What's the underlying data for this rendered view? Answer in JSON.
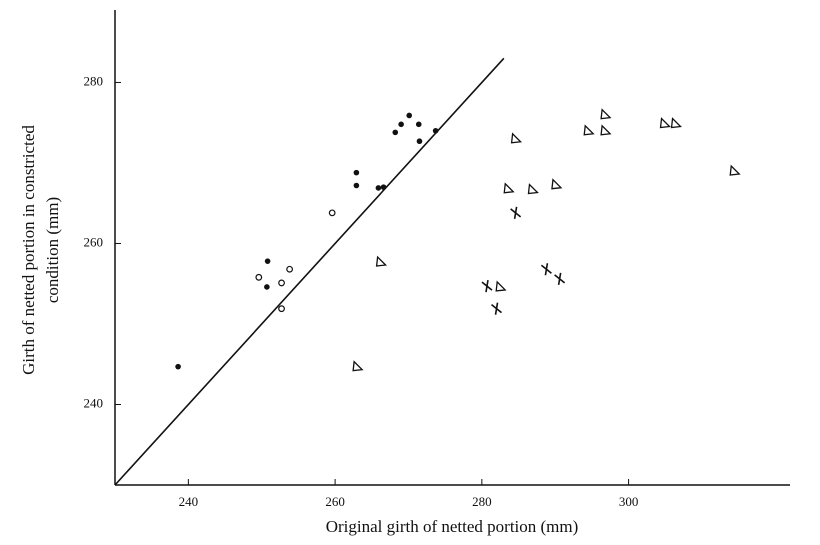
{
  "chart_data": {
    "type": "scatter",
    "xlabel": "Original girth of netted portion (mm)",
    "ylabel": [
      "Girth of netted portion in constricted",
      "condition (mm)"
    ],
    "xlim": [
      230,
      322
    ],
    "ylim": [
      230,
      289
    ],
    "xticks": [
      240,
      260,
      280,
      300
    ],
    "yticks": [
      240,
      260,
      280
    ],
    "reference_line": {
      "x": [
        230,
        283
      ],
      "y": [
        230,
        283
      ]
    },
    "series": [
      {
        "marker": "dot",
        "color": "#111111",
        "x": [
          238.6,
          250.8,
          250.7,
          262.9,
          262.9,
          265.9,
          266.6,
          268.2,
          269.0,
          270.1,
          271.4,
          271.5,
          273.7
        ],
        "values": [
          244.7,
          257.8,
          254.6,
          267.2,
          268.8,
          266.9,
          267.0,
          273.8,
          274.8,
          275.9,
          274.8,
          272.7,
          274.0
        ]
      },
      {
        "marker": "circle",
        "color": "#111111",
        "x": [
          249.6,
          252.7,
          253.8,
          252.7,
          259.6
        ],
        "values": [
          255.8,
          255.1,
          256.8,
          251.9,
          263.8
        ]
      },
      {
        "marker": "triangle",
        "color": "#111111",
        "x": [
          266.2,
          263.0,
          284.6,
          283.6,
          286.9,
          290.1,
          282.5,
          294.5,
          296.8,
          296.8,
          304.9,
          306.4,
          314.4
        ],
        "values": [
          257.7,
          244.7,
          273.0,
          266.8,
          266.7,
          267.3,
          254.6,
          274.0,
          276.0,
          274.0,
          274.9,
          274.9,
          269.0
        ]
      },
      {
        "marker": "cross",
        "color": "#111111",
        "x": [
          284.6,
          280.7,
          282.0,
          288.8,
          290.6
        ],
        "values": [
          263.8,
          254.7,
          251.9,
          256.8,
          255.6
        ]
      }
    ]
  }
}
